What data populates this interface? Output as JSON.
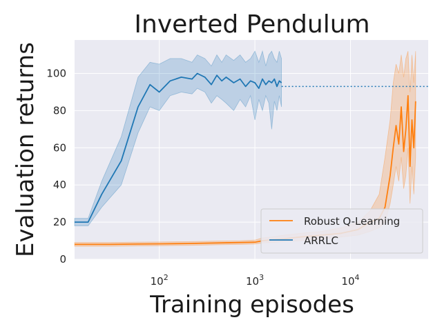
{
  "chart_data": {
    "type": "line",
    "title": "Inverted Pendulum",
    "xlabel": "Training episodes",
    "ylabel": "Evaluation returns",
    "xscale": "log",
    "xlim": [
      13,
      65000
    ],
    "ylim": [
      0,
      118
    ],
    "yticks": [
      0,
      20,
      40,
      60,
      80,
      100
    ],
    "xticks": [
      {
        "base": "10",
        "exp": "2",
        "value": 100
      },
      {
        "base": "10",
        "exp": "3",
        "value": 1000
      },
      {
        "base": "10",
        "exp": "4",
        "value": 10000
      }
    ],
    "grid": true,
    "background": "#eaeaf2",
    "legend_position": "lower-right",
    "reference_line": {
      "y": 93,
      "style": "dotted",
      "color": "#1f77b4",
      "x_from": 1900,
      "x_to": 65000
    },
    "series": [
      {
        "name": "Robust Q-Learning",
        "color": "#ff7f0e",
        "x": [
          13,
          30,
          60,
          100,
          200,
          400,
          700,
          1000,
          1200,
          1500,
          2000,
          3000,
          5000,
          8000,
          12000,
          16000,
          20000,
          23000,
          26000,
          28000,
          30000,
          32000,
          34000,
          36000,
          38000,
          40000,
          42000,
          44000,
          46000,
          48000
        ],
        "y": [
          8,
          8,
          8.2,
          8.3,
          8.5,
          8.8,
          9,
          9.2,
          10,
          10.5,
          11,
          12,
          13,
          14,
          16,
          20,
          22,
          28,
          45,
          60,
          72,
          62,
          82,
          58,
          70,
          88,
          50,
          75,
          60,
          85
        ],
        "lower": [
          7,
          7,
          7.2,
          7.3,
          7.5,
          7.8,
          8,
          8.2,
          8.8,
          9,
          9.5,
          10,
          11,
          12,
          13,
          15,
          17,
          20,
          30,
          40,
          50,
          42,
          55,
          38,
          45,
          60,
          30,
          50,
          35,
          55
        ],
        "upper": [
          9,
          9,
          9.2,
          9.3,
          9.5,
          9.8,
          10,
          10.3,
          11.5,
          12,
          13,
          14,
          15,
          17,
          20,
          26,
          35,
          55,
          75,
          95,
          105,
          100,
          110,
          98,
          108,
          112,
          90,
          110,
          95,
          112
        ]
      },
      {
        "name": "ARRLC",
        "color": "#1f77b4",
        "x": [
          13,
          18,
          25,
          40,
          60,
          80,
          100,
          130,
          170,
          220,
          250,
          300,
          350,
          400,
          450,
          500,
          600,
          700,
          800,
          900,
          1000,
          1100,
          1200,
          1300,
          1400,
          1500,
          1600,
          1700,
          1800,
          1900
        ],
        "y": [
          20,
          20,
          35,
          53,
          82,
          94,
          90,
          96,
          98,
          97,
          100,
          98,
          94,
          99,
          96,
          98,
          95,
          97,
          93,
          96,
          95,
          92,
          97,
          94,
          96,
          95,
          97,
          93,
          96,
          95
        ],
        "lower": [
          18,
          18,
          28,
          40,
          68,
          82,
          80,
          88,
          90,
          89,
          92,
          90,
          84,
          88,
          86,
          84,
          80,
          86,
          82,
          88,
          75,
          86,
          80,
          88,
          84,
          70,
          85,
          80,
          88,
          82
        ],
        "upper": [
          22,
          22,
          42,
          66,
          98,
          106,
          105,
          108,
          108,
          106,
          110,
          108,
          104,
          110,
          106,
          110,
          107,
          110,
          106,
          108,
          112,
          106,
          112,
          104,
          110,
          112,
          108,
          106,
          112,
          108
        ]
      }
    ]
  }
}
